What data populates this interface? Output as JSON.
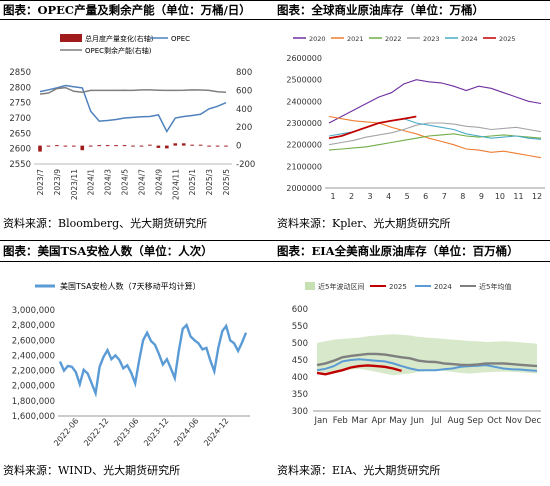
{
  "headers": {
    "top_left": "图表：OPEC产量及剩余产能（单位：万桶/日）",
    "top_right": "图表：全球商业原油库存（单位：万桶）",
    "bottom_left": "图表：美国TSA安检人数（单位：人次）",
    "bottom_right": "图表：EIA全美商业原油库存（单位：百万桶）"
  },
  "sources": {
    "top_left": "资料来源：Bloomberg、光大期货研究所",
    "top_right": "资料来源：Kpler、光大期货研究所",
    "bottom_left": "资料来源：WIND、光大期货研究所",
    "bottom_right": "资料来源：EIA、光大期货研究所"
  },
  "colors": {
    "bar": "#a01c1c",
    "opec": "#4f81bd",
    "spare": "#7f7f7f"
  },
  "chart_data": [
    {
      "type": "bar+line",
      "legend": [
        {
          "name": "总月度产量变化(右轴)",
          "kind": "bar",
          "color": "#a01c1c"
        },
        {
          "name": "OPEC",
          "kind": "line",
          "color": "#4f81bd"
        },
        {
          "name": "OPEC剩余产能(右轴)",
          "kind": "line",
          "color": "#7f7f7f"
        }
      ],
      "x_ticks": [
        "2023/7",
        "2023/9",
        "2023/11",
        "2024/1",
        "2024/3",
        "2024/5",
        "2024/7",
        "2024/9",
        "2024/11",
        "2025/1",
        "2025/3",
        "2025/5"
      ],
      "left_ticks": [
        "2850",
        "2800",
        "2750",
        "2700",
        "2650",
        "2600",
        "2550"
      ],
      "right_ticks": [
        "800",
        "600",
        "400",
        "200",
        "0",
        "-200"
      ],
      "ylim_left": [
        2550,
        2850
      ],
      "ylim_right": [
        -200,
        800
      ],
      "months": 23,
      "opec": [
        2786,
        2792,
        2798,
        2806,
        2802,
        2798,
        2722,
        2690,
        2692,
        2695,
        2700,
        2702,
        2704,
        2705,
        2710,
        2656,
        2700,
        2705,
        2708,
        2712,
        2730,
        2738,
        2750
      ],
      "spare": [
        560,
        572,
        620,
        630,
        590,
        580,
        600,
        600,
        600,
        600,
        601,
        600,
        605,
        605,
        602,
        600,
        600,
        601,
        605,
        604,
        600,
        585,
        580
      ],
      "bars": [
        -65,
        -5,
        5,
        -5,
        -5,
        -50,
        -5,
        5,
        5,
        5,
        5,
        -10,
        -5,
        10,
        -25,
        -30,
        25,
        25,
        10,
        10,
        -5,
        -5,
        -5
      ]
    },
    {
      "type": "line",
      "legend": [
        "2020",
        "2021",
        "2022",
        "2023",
        "2024",
        "2025"
      ],
      "series_colors": [
        "#7030a0",
        "#ed7d31",
        "#70ad47",
        "#a5a5a5",
        "#4bacc6",
        "#c00000"
      ],
      "y_ticks": [
        "2600000",
        "2500000",
        "2400000",
        "2300000",
        "2200000",
        "2100000",
        "2000000"
      ],
      "x_ticks": [
        "1",
        "2",
        "3",
        "4",
        "5",
        "6",
        "7",
        "8",
        "9",
        "10",
        "11",
        "12"
      ],
      "ylim": [
        2000000,
        2600000
      ],
      "series": [
        {
          "name": "2020",
          "values": [
            2300000,
            2330000,
            2360000,
            2390000,
            2420000,
            2440000,
            2480000,
            2500000,
            2490000,
            2485000,
            2470000,
            2450000,
            2470000,
            2460000,
            2440000,
            2420000,
            2400000,
            2390000
          ]
        },
        {
          "name": "2021",
          "values": [
            2330000,
            2320000,
            2310000,
            2305000,
            2300000,
            2280000,
            2265000,
            2250000,
            2230000,
            2215000,
            2200000,
            2180000,
            2175000,
            2165000,
            2170000,
            2160000,
            2150000,
            2140000
          ]
        },
        {
          "name": "2022",
          "values": [
            2175000,
            2180000,
            2185000,
            2190000,
            2200000,
            2210000,
            2220000,
            2230000,
            2240000,
            2245000,
            2250000,
            2240000,
            2235000,
            2240000,
            2245000,
            2240000,
            2235000,
            2230000
          ]
        },
        {
          "name": "2023",
          "values": [
            2200000,
            2210000,
            2220000,
            2235000,
            2245000,
            2255000,
            2270000,
            2290000,
            2300000,
            2300000,
            2295000,
            2285000,
            2280000,
            2270000,
            2275000,
            2280000,
            2270000,
            2260000
          ]
        },
        {
          "name": "2024",
          "values": [
            2240000,
            2250000,
            2260000,
            2280000,
            2300000,
            2310000,
            2320000,
            2300000,
            2290000,
            2280000,
            2270000,
            2250000,
            2240000,
            2230000,
            2235000,
            2240000,
            2230000,
            2225000
          ]
        },
        {
          "name": "2025",
          "values": [
            2230000,
            2240000,
            2260000,
            2280000,
            2300000,
            2310000,
            2320000,
            2330000
          ]
        }
      ]
    },
    {
      "type": "line",
      "legend": [
        "美国TSA安检人数（7天移动平均计算）"
      ],
      "series_colors": [
        "#5b9bd5"
      ],
      "y_ticks": [
        "3,000,000",
        "2,800,000",
        "2,600,000",
        "2,400,000",
        "2,200,000",
        "2,000,000",
        "1,800,000",
        "1,600,000"
      ],
      "x_ticks": [
        "2022-06",
        "2022-12",
        "2023-06",
        "2023-12",
        "2024-06",
        "2024-12"
      ],
      "ylim": [
        1600000,
        3000000
      ],
      "values": [
        2320000,
        2200000,
        2260000,
        2250000,
        2180000,
        2020000,
        2210000,
        2160000,
        2030000,
        1900000,
        2250000,
        2380000,
        2470000,
        2350000,
        2400000,
        2340000,
        2230000,
        2270000,
        2170000,
        2030000,
        2330000,
        2600000,
        2700000,
        2590000,
        2540000,
        2420000,
        2280000,
        2350000,
        2230000,
        2100000,
        2450000,
        2750000,
        2800000,
        2650000,
        2600000,
        2560000,
        2480000,
        2500000,
        2330000,
        2190000,
        2500000,
        2720000,
        2790000,
        2600000,
        2560000,
        2460000,
        2570000,
        2700000
      ]
    },
    {
      "type": "line+area",
      "legend": [
        "近5年波动区间",
        "2025",
        "2024",
        "近5年均值"
      ],
      "series_colors": [
        "#c6e0b4",
        "#c00000",
        "#5b9bd5",
        "#7f7f7f"
      ],
      "y_ticks": [
        "600",
        "550",
        "500",
        "450",
        "400",
        "350",
        "300"
      ],
      "x_ticks": [
        "Jan",
        "Feb",
        "Mar",
        "Apr",
        "May",
        "Jun",
        "Jul",
        "Aug",
        "Sep",
        "Oct",
        "Nov",
        "Dec"
      ],
      "ylim": [
        300,
        600
      ],
      "band_low": [
        415,
        412,
        418,
        420,
        422,
        424,
        420,
        415,
        410,
        405,
        408,
        410,
        415,
        418,
        420,
        418,
        415,
        412,
        410,
        412,
        414,
        415,
        416,
        415,
        414,
        412,
        410
      ],
      "band_high": [
        500,
        505,
        510,
        512,
        514,
        516,
        520,
        522,
        524,
        526,
        524,
        522,
        518,
        516,
        514,
        512,
        510,
        508,
        506,
        505,
        503,
        504,
        505,
        504,
        502,
        500,
        498
      ],
      "y2025": [
        412,
        408,
        414,
        420,
        428,
        432,
        434,
        432,
        430,
        425,
        418
      ],
      "y2024": [
        420,
        424,
        432,
        446,
        450,
        452,
        450,
        448,
        446,
        440,
        432,
        425,
        420,
        420,
        420,
        423,
        425,
        430,
        432,
        433,
        435,
        430,
        425,
        423,
        422,
        420,
        418
      ],
      "avg": [
        435,
        440,
        448,
        458,
        462,
        465,
        468,
        468,
        466,
        462,
        458,
        455,
        448,
        445,
        444,
        440,
        438,
        436,
        435,
        437,
        440,
        440,
        440,
        438,
        436,
        434,
        432
      ]
    }
  ]
}
